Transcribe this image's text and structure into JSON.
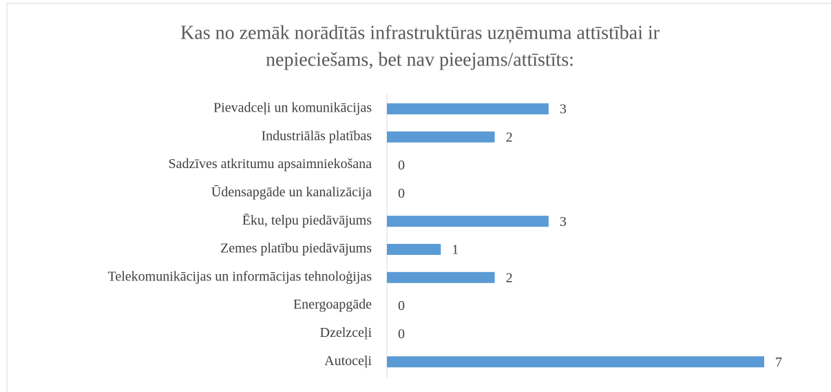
{
  "chart_data": {
    "type": "bar",
    "orientation": "horizontal",
    "title": [
      "Kas no zemāk norādītās infrastruktūras uzņēmuma attīstībai ir",
      "nepieciešams, bet nav pieejams/attīstīts:"
    ],
    "categories": [
      "Pievadceļi un komunikācijas",
      "Industriālās platības",
      "Sadzīves atkritumu apsaimniekošana",
      "Ūdensapgāde un kanalizācija",
      "Ēku, telpu piedāvājums",
      "Zemes platību piedāvājums",
      "Telekomunikācijas un informācijas tehnoloģijas",
      "Energoapgāde",
      "Dzelzceļi",
      "Autoceļi"
    ],
    "values": [
      3,
      2,
      0,
      0,
      3,
      1,
      2,
      0,
      0,
      7
    ],
    "color": "#5b9bd5"
  }
}
